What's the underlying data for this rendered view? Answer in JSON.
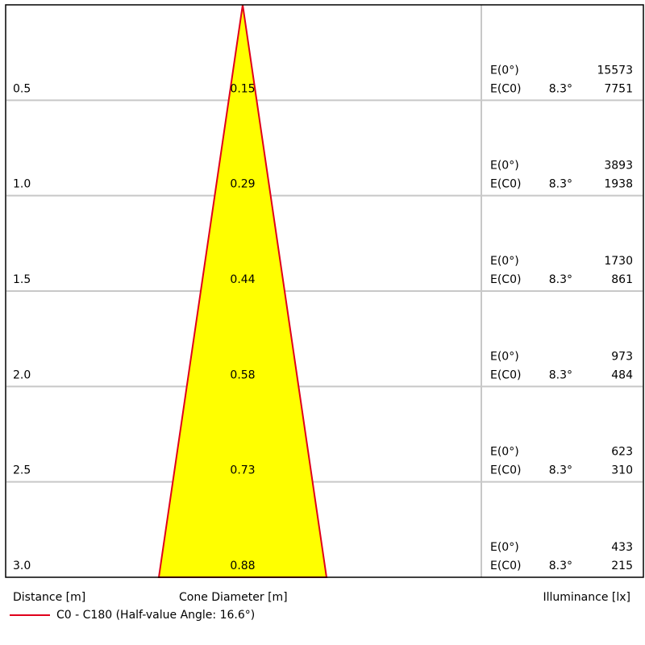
{
  "chart_data": {
    "type": "cone-diagram",
    "rows": [
      {
        "distance": "0.5",
        "diameter": "0.15",
        "e0_label": "E(0°)",
        "e0": "15573",
        "ec_label": "E(C0)",
        "angle": "8.3°",
        "ec": "7751"
      },
      {
        "distance": "1.0",
        "diameter": "0.29",
        "e0_label": "E(0°)",
        "e0": "3893",
        "ec_label": "E(C0)",
        "angle": "8.3°",
        "ec": "1938"
      },
      {
        "distance": "1.5",
        "diameter": "0.44",
        "e0_label": "E(0°)",
        "e0": "1730",
        "ec_label": "E(C0)",
        "angle": "8.3°",
        "ec": "861"
      },
      {
        "distance": "2.0",
        "diameter": "0.58",
        "e0_label": "E(0°)",
        "e0": "973",
        "ec_label": "E(C0)",
        "angle": "8.3°",
        "ec": "484"
      },
      {
        "distance": "2.5",
        "diameter": "0.73",
        "e0_label": "E(0°)",
        "e0": "623",
        "ec_label": "E(C0)",
        "angle": "8.3°",
        "ec": "310"
      },
      {
        "distance": "3.0",
        "diameter": "0.88",
        "e0_label": "E(0°)",
        "e0": "433",
        "ec_label": "E(C0)",
        "angle": "8.3°",
        "ec": "215"
      }
    ],
    "max_distance": 3.0,
    "max_diameter": 0.88,
    "xlabel_distance": "Distance [m]",
    "xlabel_diameter": "Cone Diameter [m]",
    "xlabel_illuminance": "Illuminance [lx]",
    "legend": "C0 - C180 (Half-value Angle: 16.6°)",
    "colors": {
      "cone_fill": "#ffff00",
      "cone_stroke": "#e0001b",
      "grid": "#c8c8c8",
      "frame": "#000000"
    }
  }
}
